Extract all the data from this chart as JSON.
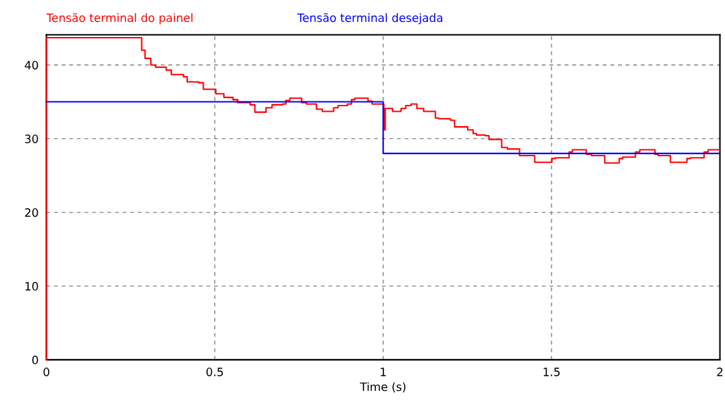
{
  "chart_data": {
    "type": "step",
    "xlabel": "Time (s)",
    "xlim": [
      0,
      2
    ],
    "ylim": [
      0,
      44.1
    ],
    "xticks": [
      0,
      0.5,
      1,
      1.5,
      2
    ],
    "yticks": [
      0,
      10,
      20,
      30,
      40
    ],
    "grid": true,
    "legend": "top",
    "line_style": "solid",
    "series": [
      {
        "name": "Tensão terminal do painel",
        "color": "#ff0000",
        "x": [
          0,
          0,
          0.275,
          0.283,
          0.293,
          0.31,
          0.324,
          0.356,
          0.371,
          0.407,
          0.418,
          0.452,
          0.466,
          0.503,
          0.527,
          0.554,
          0.568,
          0.605,
          0.619,
          0.652,
          0.67,
          0.701,
          0.711,
          0.723,
          0.758,
          0.772,
          0.802,
          0.819,
          0.853,
          0.866,
          0.894,
          0.906,
          0.916,
          0.955,
          0.967,
          1.002,
          1.006,
          1.028,
          1.053,
          1.067,
          1.083,
          1.1,
          1.12,
          1.155,
          1.165,
          1.2,
          1.212,
          1.251,
          1.267,
          1.277,
          1.303,
          1.314,
          1.352,
          1.369,
          1.405,
          1.45,
          1.501,
          1.511,
          1.552,
          1.562,
          1.603,
          1.619,
          1.658,
          1.701,
          1.711,
          1.749,
          1.762,
          1.807,
          1.817,
          1.853,
          1.902,
          1.912,
          1.953,
          1.965,
          2.0
        ],
        "values": [
          0,
          43.7,
          43.7,
          42.0,
          40.9,
          40.0,
          39.7,
          39.3,
          38.7,
          38.4,
          37.7,
          37.6,
          36.7,
          36.1,
          35.6,
          35.3,
          34.9,
          34.6,
          33.6,
          34.2,
          34.6,
          34.7,
          35.2,
          35.5,
          34.9,
          34.7,
          34.0,
          33.7,
          34.2,
          34.5,
          34.7,
          35.3,
          35.5,
          35.1,
          34.7,
          31.2,
          34.1,
          33.7,
          34.1,
          34.5,
          34.7,
          34.1,
          33.7,
          32.8,
          32.7,
          32.5,
          31.6,
          31.2,
          30.7,
          30.5,
          30.4,
          29.9,
          28.8,
          28.6,
          27.7,
          26.8,
          27.3,
          27.4,
          28.2,
          28.5,
          27.9,
          27.7,
          26.7,
          27.3,
          27.5,
          28.2,
          28.5,
          27.9,
          27.7,
          26.8,
          27.3,
          27.4,
          28.2,
          28.5,
          28.5
        ]
      },
      {
        "name": "Tensão terminal desejada",
        "color": "#0000ff",
        "x": [
          0,
          1,
          2
        ],
        "values": [
          35,
          28,
          28
        ]
      }
    ]
  }
}
